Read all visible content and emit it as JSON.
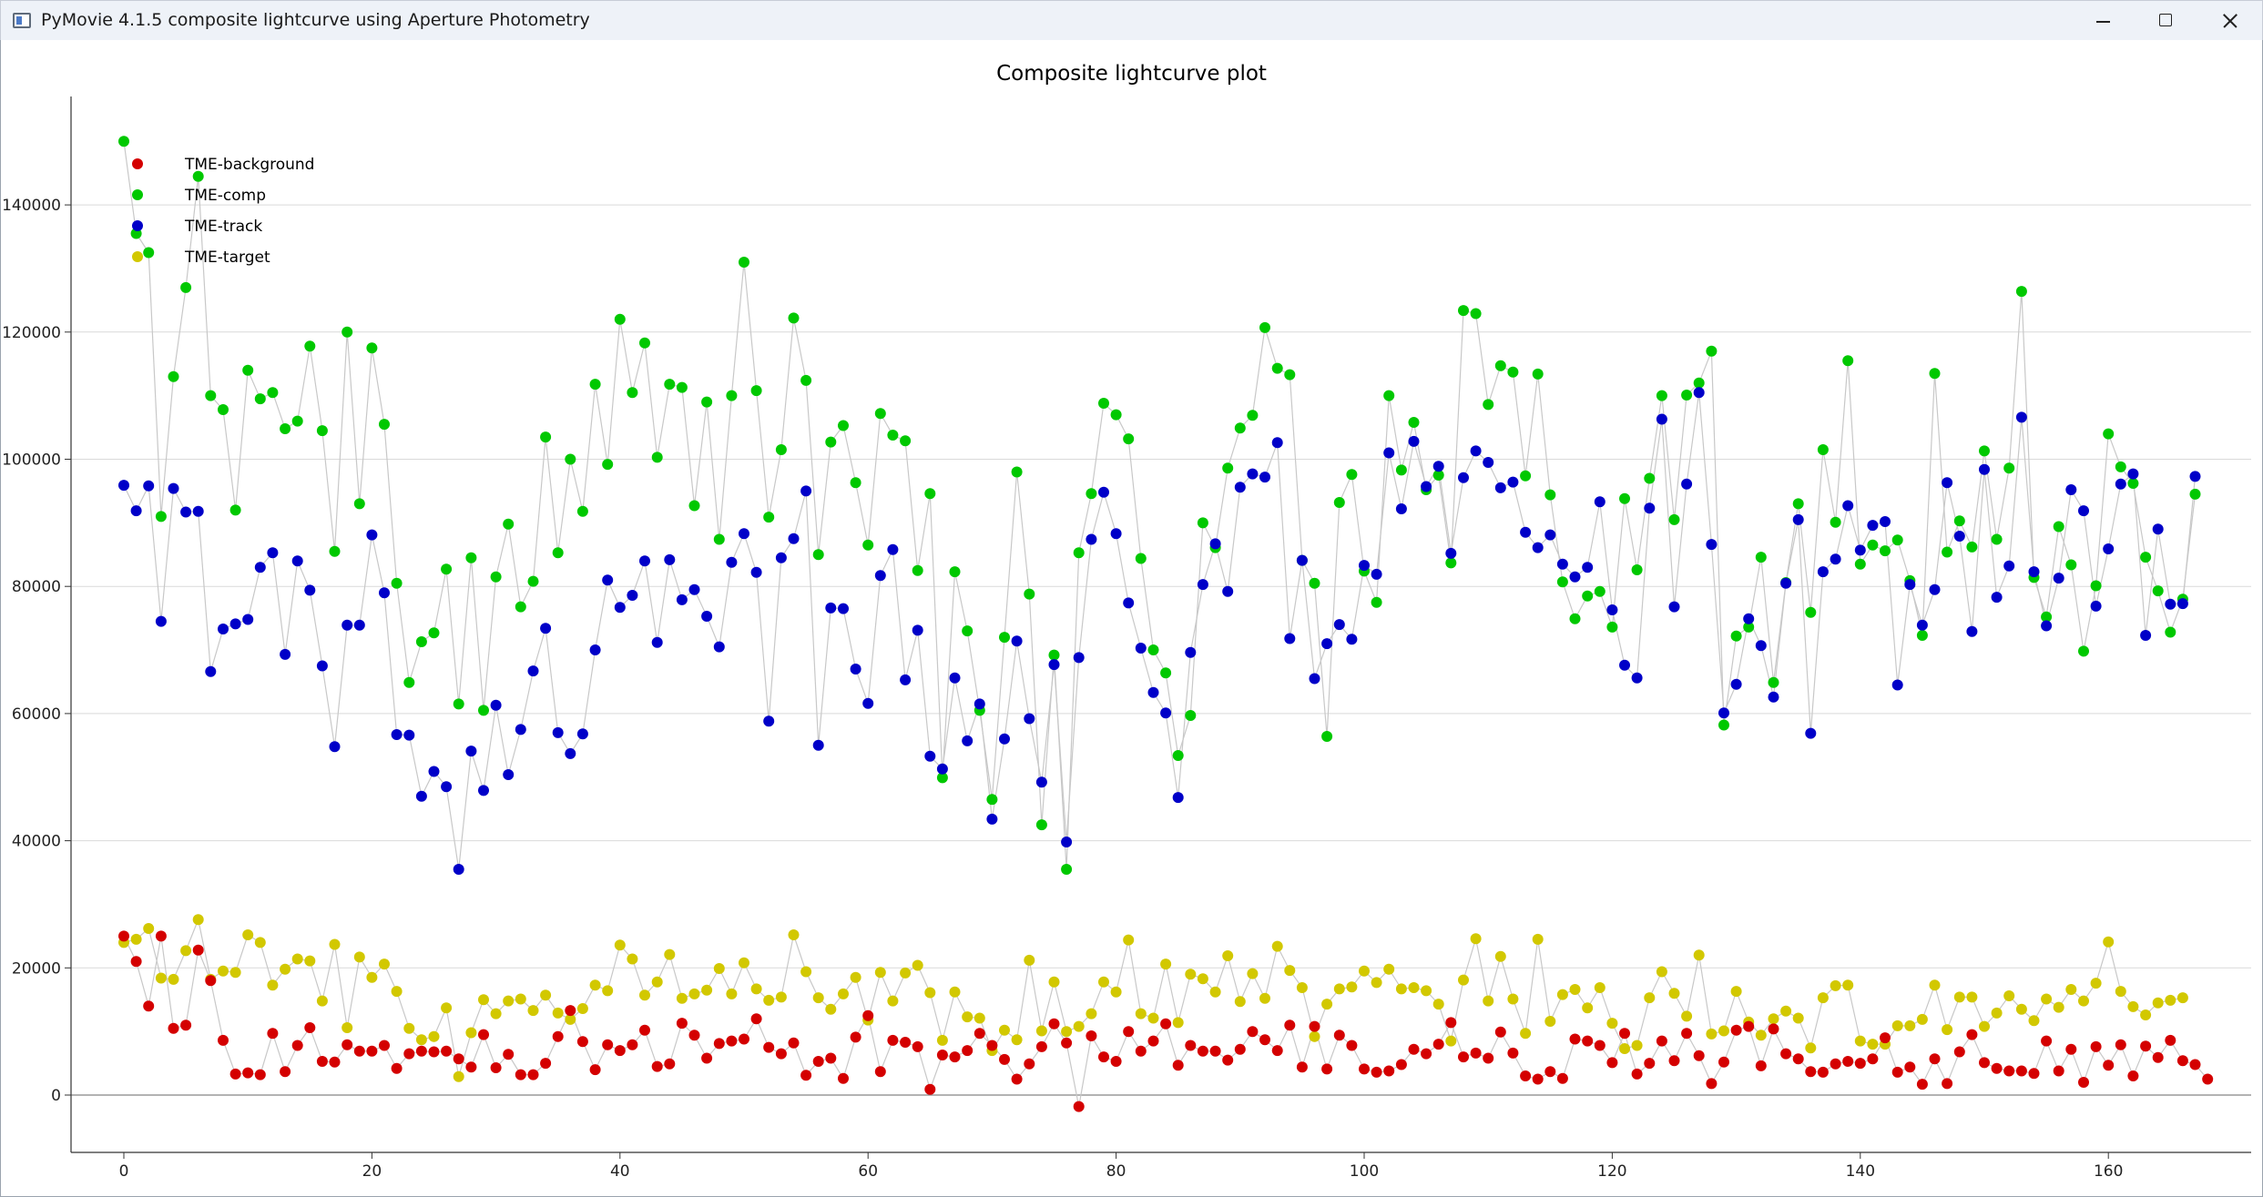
{
  "window": {
    "title": "PyMovie 4.1.5 composite lightcurve using Aperture Photometry",
    "icon": "app-window-icon",
    "controls": [
      "minimize-icon",
      "maximize-icon",
      "close-icon"
    ]
  },
  "chart_data": {
    "type": "scatter",
    "title": "Composite lightcurve plot",
    "xlabel": "",
    "ylabel": "",
    "xlim": [
      -4,
      171
    ],
    "ylim": [
      -15000,
      156000
    ],
    "xticks": [
      0,
      20,
      40,
      60,
      80,
      100,
      120,
      140,
      160
    ],
    "yticks": [
      0,
      20000,
      40000,
      60000,
      80000,
      100000,
      120000,
      140000
    ],
    "grid": "horizontal",
    "connect_points": true,
    "line_color": "#c8c8c8",
    "legend_position": "top-left",
    "series": [
      {
        "name": "TME-background",
        "color": "#d40000",
        "values": [
          25000,
          21000,
          14000,
          25000,
          10500,
          11000,
          22800,
          18000,
          8600,
          3300,
          3500,
          3200,
          9700,
          3700,
          7800,
          10600,
          5300,
          5200,
          7900,
          6900,
          6900,
          7800,
          4200,
          6500,
          6900,
          6800,
          6900,
          5700,
          4400,
          9500,
          4300,
          6400,
          3200,
          3200,
          5000,
          9200,
          13300,
          8400,
          4000,
          7900,
          7000,
          7900,
          10200,
          4500,
          4900,
          11300,
          9400,
          5800,
          8100,
          8500,
          8800,
          12000,
          7500,
          6500,
          8200,
          3100,
          5300,
          5800,
          2600,
          9100,
          12500,
          3700,
          8600,
          8300,
          7600,
          900,
          6300,
          6000,
          7000,
          9700,
          7800,
          5600,
          2500,
          4900,
          7600,
          11200,
          8200,
          -1800,
          9300,
          6000,
          5300,
          10000,
          6900,
          8500,
          11200,
          4700,
          7800,
          6900,
          6900,
          5500,
          7200,
          10000,
          8700,
          7000,
          11000,
          4400,
          10800,
          4100,
          9400,
          7800,
          4100,
          3600,
          3800,
          4800,
          7200,
          6500,
          8000,
          11400,
          6000,
          6600,
          5800,
          9900,
          6600,
          3000,
          2500,
          3700,
          2600,
          8800,
          8500,
          7800,
          5100,
          9700,
          3300,
          5000,
          8500,
          5400,
          9700,
          6200,
          1800,
          5200,
          10200,
          10800,
          4600,
          10400,
          6500,
          5700,
          3700,
          3600,
          4900,
          5300,
          5000,
          5700,
          9000,
          3600,
          4400,
          1700,
          5700,
          1800,
          6800,
          9500,
          5100,
          4200,
          3800,
          3800,
          3400,
          8500,
          3800,
          7200,
          2000,
          7600,
          4700,
          7900,
          3000,
          7700,
          5900,
          8600,
          5400,
          4800,
          2500
        ]
      },
      {
        "name": "TME-comp",
        "color": "#00c800",
        "values": [
          150000,
          135500,
          132500,
          91000,
          113000,
          127000,
          144500,
          110000,
          107800,
          92000,
          114000,
          109500,
          110500,
          104800,
          106000,
          117800,
          104500,
          85500,
          120000,
          93000,
          117500,
          105500,
          80500,
          64900,
          71300,
          72700,
          82700,
          61500,
          84500,
          60500,
          81500,
          89800,
          76800,
          80800,
          103500,
          85300,
          100000,
          91800,
          111800,
          99200,
          122000,
          110500,
          118300,
          100300,
          111800,
          111300,
          92700,
          109000,
          87400,
          110000,
          131000,
          110800,
          90900,
          101500,
          122200,
          112400,
          85000,
          102700,
          105300,
          96300,
          86500,
          107200,
          103800,
          102900,
          82500,
          94600,
          49900,
          82300,
          73000,
          60500,
          46500,
          72000,
          98000,
          78800,
          42500,
          69200,
          35500,
          85300,
          94600,
          108800,
          107000,
          103200,
          84400,
          70000,
          66400,
          53400,
          59700,
          90000,
          86100,
          98600,
          104900,
          106900,
          120700,
          114300,
          113300,
          84100,
          80500,
          56400,
          93200,
          97600,
          82400,
          77500,
          110000,
          98300,
          105800,
          95200,
          97500,
          83700,
          123400,
          122900,
          108600,
          114700,
          113700,
          97400,
          113400,
          94400,
          80700,
          74900,
          78500,
          79200,
          73600,
          93800,
          82600,
          97000,
          110000,
          90500,
          110100,
          112000,
          117000,
          58200,
          72200,
          73600,
          84600,
          64900,
          80600,
          93000,
          75900,
          101500,
          90100,
          115500,
          83500,
          86500,
          85600,
          87300,
          80900,
          72300,
          113500,
          85400,
          90300,
          86200,
          101300,
          87400,
          98600,
          126400,
          81400,
          75200,
          89400,
          83400,
          69800,
          80100,
          104000,
          98800,
          96200,
          84600,
          79300,
          72800,
          78000,
          94500
        ]
      },
      {
        "name": "TME-track",
        "color": "#0000c8",
        "values": [
          95900,
          91900,
          95800,
          74500,
          95400,
          91700,
          91800,
          66600,
          73300,
          74100,
          74800,
          83000,
          85300,
          69300,
          84000,
          79400,
          67500,
          54800,
          73900,
          73900,
          88100,
          79000,
          56700,
          56600,
          47000,
          50900,
          48500,
          35500,
          54100,
          47900,
          61300,
          50400,
          57500,
          66700,
          73400,
          57000,
          53700,
          56800,
          70000,
          81000,
          76700,
          78600,
          84000,
          71200,
          84200,
          77900,
          79500,
          75300,
          70500,
          83800,
          88300,
          82200,
          58800,
          84500,
          87500,
          95000,
          55000,
          76600,
          76500,
          67000,
          61600,
          81700,
          85800,
          65300,
          73100,
          53300,
          51300,
          65600,
          55700,
          61500,
          43400,
          56000,
          71400,
          59200,
          49200,
          67700,
          39800,
          68800,
          87400,
          94800,
          88300,
          77400,
          70300,
          63300,
          60100,
          46800,
          69600,
          80300,
          86700,
          79200,
          95600,
          97700,
          97200,
          102600,
          71800,
          84100,
          65500,
          71000,
          74000,
          71700,
          83300,
          81900,
          101000,
          92200,
          102800,
          95700,
          98900,
          85200,
          97100,
          101300,
          99500,
          95500,
          96400,
          88500,
          86100,
          88100,
          83500,
          81500,
          83000,
          93300,
          76300,
          67600,
          65600,
          92300,
          106300,
          76800,
          96100,
          110500,
          86600,
          60100,
          64600,
          74900,
          70700,
          62600,
          80500,
          90500,
          56900,
          82300,
          84300,
          92700,
          85700,
          89600,
          90200,
          64500,
          80300,
          73900,
          79500,
          96300,
          87900,
          72900,
          98400,
          78300,
          83200,
          106600,
          82300,
          73800,
          81300,
          95200,
          91900,
          76900,
          85900,
          96100,
          97700,
          72300,
          89000,
          77200,
          77300,
          97300
        ]
      },
      {
        "name": "TME-target",
        "color": "#d2c800",
        "values": [
          24000,
          24500,
          26200,
          18400,
          18200,
          22700,
          27600,
          18200,
          19500,
          19300,
          25200,
          24000,
          17300,
          19800,
          21400,
          21100,
          14800,
          23700,
          10600,
          21700,
          18500,
          20600,
          16300,
          10500,
          8700,
          9200,
          13700,
          2900,
          9800,
          15000,
          12800,
          14800,
          15100,
          13300,
          15700,
          12900,
          11900,
          13600,
          17300,
          16400,
          23600,
          21400,
          15700,
          17800,
          22100,
          15200,
          15900,
          16500,
          19900,
          15900,
          20800,
          16700,
          14900,
          15400,
          25200,
          19400,
          15300,
          13500,
          15900,
          18500,
          11800,
          19300,
          14800,
          19200,
          20400,
          16100,
          8600,
          16200,
          12300,
          12100,
          7000,
          10200,
          8700,
          21200,
          10100,
          17800,
          10000,
          10800,
          12800,
          17800,
          16200,
          24400,
          12800,
          12100,
          20600,
          11400,
          19000,
          18300,
          16200,
          21900,
          14700,
          19100,
          15200,
          23400,
          19600,
          16900,
          9200,
          14300,
          16700,
          17000,
          19500,
          17700,
          19800,
          16700,
          16900,
          16400,
          14300,
          8500,
          18100,
          24600,
          14800,
          21800,
          15100,
          9700,
          24500,
          11600,
          15800,
          16600,
          13700,
          16900,
          11300,
          7300,
          7800,
          15300,
          19400,
          16000,
          12400,
          22000,
          9600,
          10100,
          16300,
          11500,
          9400,
          12000,
          13200,
          12100,
          7400,
          15300,
          17200,
          17300,
          8500,
          8000,
          8000,
          10900,
          10900,
          11900,
          17300,
          10300,
          15400,
          15400,
          10800,
          12900,
          15600,
          13500,
          11700,
          15100,
          13800,
          16600,
          14800,
          17600,
          24100,
          16300,
          13900,
          12600,
          14500,
          14900,
          15300
        ]
      }
    ]
  }
}
